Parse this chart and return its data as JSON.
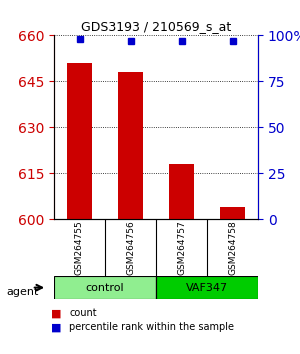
{
  "title": "GDS3193 / 210569_s_at",
  "samples": [
    "GSM264755",
    "GSM264756",
    "GSM264757",
    "GSM264758"
  ],
  "counts": [
    651,
    648,
    618,
    604
  ],
  "percentiles": [
    98,
    97,
    97,
    97
  ],
  "ylim_left": [
    600,
    660
  ],
  "ylim_right": [
    0,
    100
  ],
  "yticks_left": [
    600,
    615,
    630,
    645,
    660
  ],
  "yticks_right": [
    0,
    25,
    50,
    75,
    100
  ],
  "ytick_labels_right": [
    "0",
    "25",
    "50",
    "75",
    "100%"
  ],
  "groups": [
    {
      "label": "control",
      "samples": [
        0,
        1
      ],
      "color": "#90EE90"
    },
    {
      "label": "VAF347",
      "samples": [
        2,
        3
      ],
      "color": "#00CC00"
    }
  ],
  "bar_color": "#CC0000",
  "dot_color": "#0000CC",
  "bar_width": 0.5,
  "background_color": "#FFFFFF",
  "plot_bg_color": "#FFFFFF",
  "grid_color": "#000000",
  "left_tick_color": "#CC0000",
  "right_tick_color": "#0000CC",
  "agent_label": "agent",
  "legend_count_label": "count",
  "legend_pct_label": "percentile rank within the sample"
}
